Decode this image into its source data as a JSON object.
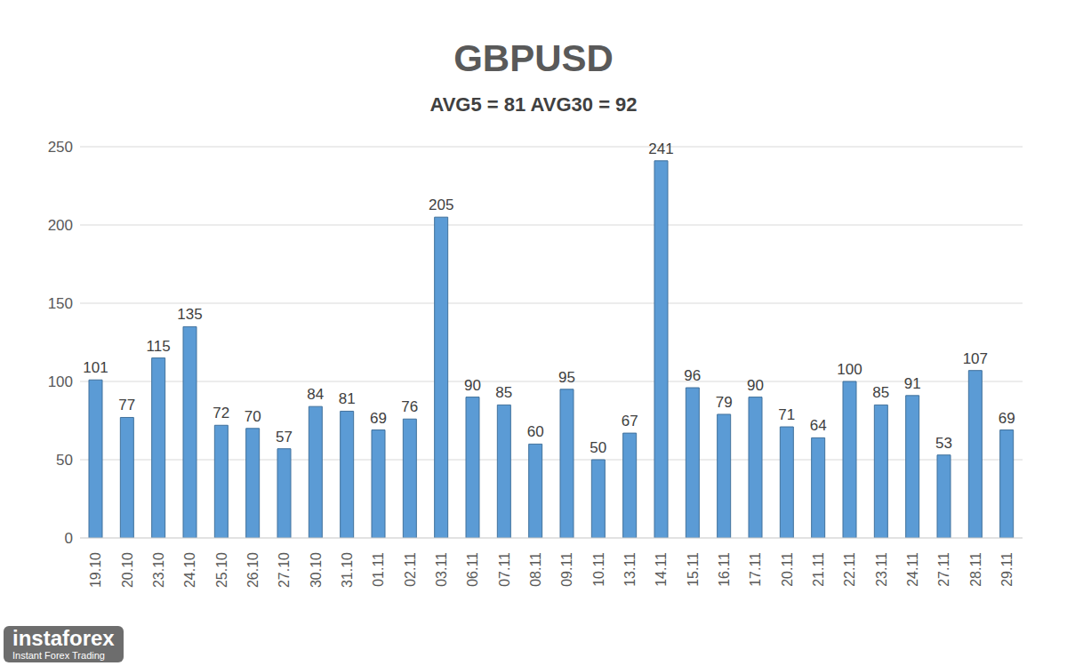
{
  "chart_data": {
    "type": "bar",
    "title": "GBPUSD",
    "subtitle": "AVG5 = 81 AVG30 = 92",
    "categories": [
      "19.10",
      "20.10",
      "23.10",
      "24.10",
      "25.10",
      "26.10",
      "27.10",
      "30.10",
      "31.10",
      "01.11",
      "02.11",
      "03.11",
      "06.11",
      "07.11",
      "08.11",
      "09.11",
      "10.11",
      "13.11",
      "14.11",
      "15.11",
      "16.11",
      "17.11",
      "20.11",
      "21.11",
      "22.11",
      "23.11",
      "24.11",
      "27.11",
      "28.11",
      "29.11"
    ],
    "values": [
      101,
      77,
      115,
      135,
      72,
      70,
      57,
      84,
      81,
      69,
      76,
      205,
      90,
      85,
      60,
      95,
      50,
      67,
      241,
      96,
      79,
      90,
      71,
      64,
      100,
      85,
      91,
      53,
      107,
      69
    ],
    "color": "#5b9bd5",
    "ylim": [
      0,
      250
    ],
    "yticks": [
      0,
      50,
      100,
      150,
      200,
      250
    ],
    "grid": true,
    "data_labels": true,
    "annotations": [
      "instaforex",
      "Instant Forex Trading"
    ]
  }
}
